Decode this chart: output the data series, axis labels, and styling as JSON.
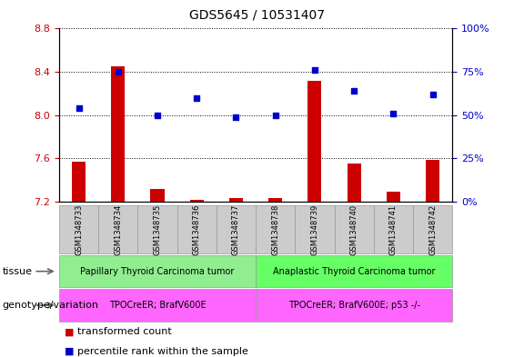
{
  "title": "GDS5645 / 10531407",
  "samples": [
    "GSM1348733",
    "GSM1348734",
    "GSM1348735",
    "GSM1348736",
    "GSM1348737",
    "GSM1348738",
    "GSM1348739",
    "GSM1348740",
    "GSM1348741",
    "GSM1348742"
  ],
  "transformed_count": [
    7.57,
    8.45,
    7.32,
    7.22,
    7.23,
    7.23,
    8.32,
    7.55,
    7.29,
    7.59
  ],
  "percentile_rank": [
    54,
    75,
    50,
    60,
    49,
    50,
    76,
    64,
    51,
    62
  ],
  "ylim_left": [
    7.2,
    8.8
  ],
  "ylim_right": [
    0,
    100
  ],
  "yticks_left": [
    7.2,
    7.6,
    8.0,
    8.4,
    8.8
  ],
  "yticks_right": [
    0,
    25,
    50,
    75,
    100
  ],
  "bar_color": "#cc0000",
  "dot_color": "#0000cc",
  "bar_base": 7.2,
  "tissue_groups": [
    {
      "label": "Papillary Thyroid Carcinoma tumor",
      "start": 0,
      "end": 5,
      "color": "#90ee90"
    },
    {
      "label": "Anaplastic Thyroid Carcinoma tumor",
      "start": 5,
      "end": 10,
      "color": "#66ff66"
    }
  ],
  "genotype_groups": [
    {
      "label": "TPOCreER; BrafV600E",
      "start": 0,
      "end": 5,
      "color": "#ff66ff"
    },
    {
      "label": "TPOCreER; BrafV600E; p53 -/-",
      "start": 5,
      "end": 10,
      "color": "#ff66ff"
    }
  ],
  "tissue_label": "tissue",
  "genotype_label": "genotype/variation",
  "legend_items": [
    {
      "color": "#cc0000",
      "label": "transformed count"
    },
    {
      "color": "#0000cc",
      "label": "percentile rank within the sample"
    }
  ],
  "ylabel_left_color": "#cc0000",
  "ylabel_right_color": "#0000cc",
  "xticklabel_bg": "#cccccc"
}
